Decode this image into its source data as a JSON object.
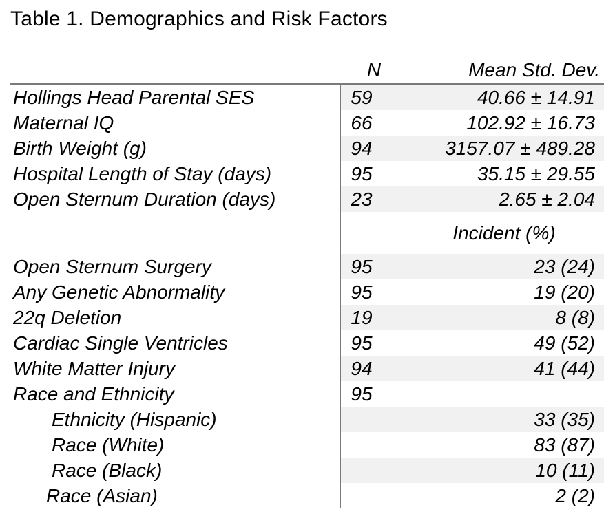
{
  "title": "Table 1. Demographics and Risk Factors",
  "table": {
    "header": {
      "label": "",
      "n": "N",
      "mean": "Mean Std. Dev."
    },
    "section_header": "Incident (%)",
    "rows": [
      {
        "label": "Hollings Head Parental SES",
        "n": "59",
        "value": "40.66 ± 14.91"
      },
      {
        "label": "Maternal IQ",
        "n": "66",
        "value": "102.92 ± 16.73"
      },
      {
        "label": "Birth Weight (g)",
        "n": "94",
        "value": "3157.07 ± 489.28"
      },
      {
        "label": "Hospital Length of Stay (days)",
        "n": "95",
        "value": "35.15 ± 29.55"
      },
      {
        "label": "Open Sternum Duration (days)",
        "n": "23",
        "value": "2.65 ± 2.04"
      },
      {
        "label": "Open Sternum Surgery",
        "n": "95",
        "value": "23 (24)"
      },
      {
        "label": "Any Genetic Abnormality",
        "n": "95",
        "value": "19 (20)"
      },
      {
        "label": "22q Deletion",
        "n": "19",
        "value": "8 (8)"
      },
      {
        "label": "Cardiac Single Ventricles",
        "n": "95",
        "value": "49 (52)"
      },
      {
        "label": "White Matter Injury",
        "n": "94",
        "value": "41 (44)"
      },
      {
        "label": "Race and Ethnicity",
        "n": "95",
        "value": ""
      },
      {
        "label": "Ethnicity (Hispanic)",
        "n": "",
        "value": "33 (35)"
      },
      {
        "label": "Race (White)",
        "n": "",
        "value": "83 (87)"
      },
      {
        "label": "Race (Black)",
        "n": "",
        "value": "10 (11)"
      },
      {
        "label": "Race (Asian)",
        "n": "",
        "value": "2 (2)"
      }
    ],
    "colors": {
      "row_shade": "#f1f1f1",
      "rule": "#7a7a7a",
      "text": "#000000",
      "background": "#ffffff"
    }
  }
}
